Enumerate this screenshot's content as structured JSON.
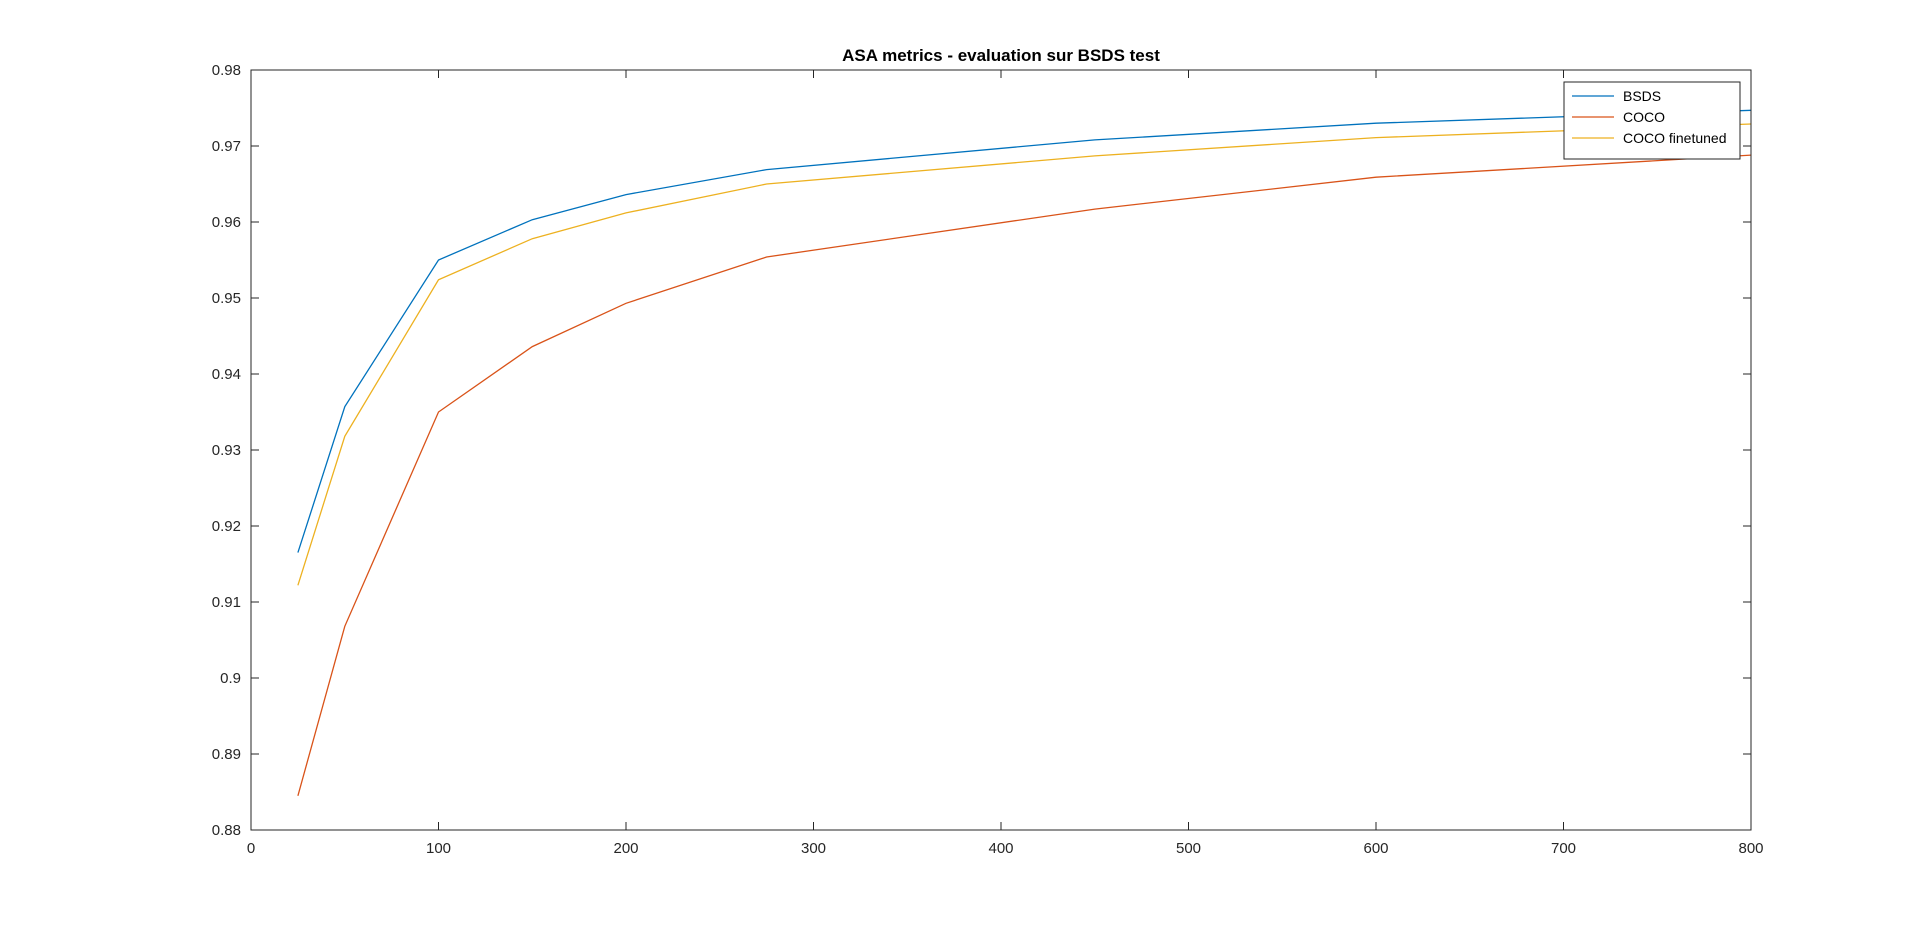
{
  "chart_data": {
    "type": "line",
    "title": "ASA metrics - evaluation sur BSDS test",
    "xlabel": "",
    "ylabel": "",
    "xlim": [
      0,
      800
    ],
    "ylim": [
      0.88,
      0.98
    ],
    "xticks": [
      0,
      100,
      200,
      300,
      400,
      500,
      600,
      700,
      800
    ],
    "yticks": [
      0.88,
      0.89,
      0.9,
      0.91,
      0.92,
      0.93,
      0.94,
      0.95,
      0.96,
      0.97,
      0.98
    ],
    "xtick_labels": [
      "0",
      "100",
      "200",
      "300",
      "400",
      "500",
      "600",
      "700",
      "800"
    ],
    "ytick_labels": [
      "0.88",
      "0.89",
      "0.9",
      "0.91",
      "0.92",
      "0.93",
      "0.94",
      "0.95",
      "0.96",
      "0.97",
      "0.98"
    ],
    "grid": false,
    "legend_position": "top-right",
    "series": [
      {
        "name": "BSDS",
        "color": "#0072BD",
        "x": [
          25,
          50,
          100,
          150,
          200,
          275,
          450,
          600,
          800
        ],
        "y": [
          0.9165,
          0.9357,
          0.955,
          0.9603,
          0.9636,
          0.9669,
          0.9708,
          0.973,
          0.9747
        ]
      },
      {
        "name": "COCO",
        "color": "#D95319",
        "x": [
          25,
          50,
          100,
          150,
          200,
          275,
          450,
          600,
          800
        ],
        "y": [
          0.8845,
          0.9068,
          0.935,
          0.9436,
          0.9493,
          0.9554,
          0.9617,
          0.9659,
          0.9688
        ]
      },
      {
        "name": "COCO finetuned",
        "color": "#EDB120",
        "x": [
          25,
          50,
          100,
          150,
          200,
          275,
          450,
          600,
          800
        ],
        "y": [
          0.9122,
          0.9318,
          0.9524,
          0.9578,
          0.9612,
          0.965,
          0.9687,
          0.9711,
          0.9729
        ]
      }
    ]
  }
}
